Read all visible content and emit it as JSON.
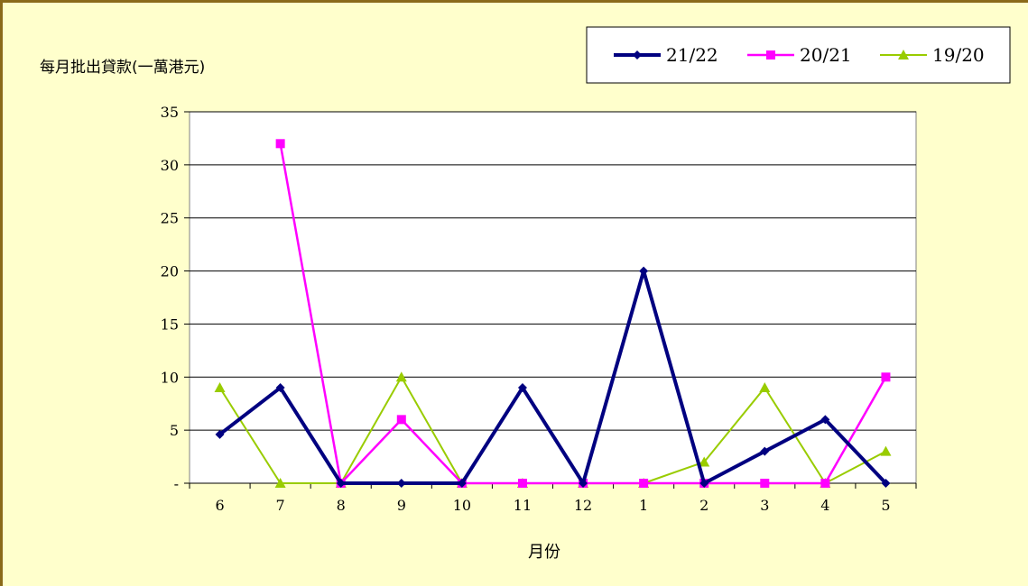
{
  "chart_data": {
    "type": "line",
    "ylabel": "每月批出貸款(一萬港元)",
    "xlabel": "月份",
    "categories": [
      "6",
      "7",
      "8",
      "9",
      "10",
      "11",
      "12",
      "1",
      "2",
      "3",
      "4",
      "5"
    ],
    "ylim": [
      0,
      35
    ],
    "y_ticks": [
      0,
      5,
      10,
      15,
      20,
      25,
      30,
      35
    ],
    "y_tick_labels": [
      "-",
      "5",
      "10",
      "15",
      "20",
      "25",
      "30",
      "35"
    ],
    "grid": "horizontal",
    "legend_position": "top-right",
    "series": [
      {
        "name": "21/22",
        "color": "#000080",
        "marker": "diamond",
        "values": [
          4.6,
          9,
          0,
          0,
          0,
          9,
          0,
          20,
          0,
          3,
          6,
          0
        ]
      },
      {
        "name": "20/21",
        "color": "#ff00ff",
        "marker": "square",
        "values": [
          null,
          32,
          0,
          6,
          0,
          0,
          0,
          0,
          0,
          0,
          0,
          10
        ]
      },
      {
        "name": "19/20",
        "color": "#99cc00",
        "marker": "triangle",
        "values": [
          9,
          0,
          0,
          10,
          0,
          0,
          0,
          0,
          2,
          9,
          0,
          3
        ]
      }
    ]
  }
}
